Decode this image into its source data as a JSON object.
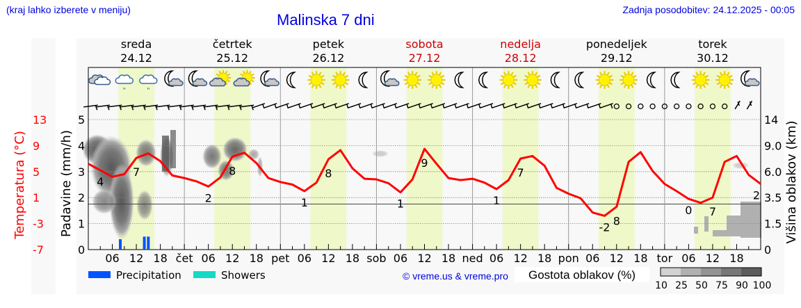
{
  "header": {
    "region_hint": "(kraj lahko izberete v meniju)",
    "title": "Malinska 7 dni",
    "last_update": "Zadnja posodobitev: 24.12.2025 - 00:05"
  },
  "colors": {
    "header_text": "#0000e0",
    "temperature": "#ff0000",
    "weekend_text": "#d00000",
    "daytime_band": "#eff8c8",
    "precipitation": "#0055ff",
    "showers": "#14d9c4",
    "cloud_scale": [
      "#d2d2d2",
      "#b0b0b0",
      "#939393",
      "#777777",
      "#5c5c5c"
    ]
  },
  "days": [
    {
      "name": "sreda",
      "date": "24.12",
      "weekend": false,
      "short": ""
    },
    {
      "name": "četrtek",
      "date": "25.12",
      "weekend": false,
      "short": "čet"
    },
    {
      "name": "petek",
      "date": "26.12",
      "weekend": false,
      "short": "pet"
    },
    {
      "name": "sobota",
      "date": "27.12",
      "weekend": true,
      "short": "sob"
    },
    {
      "name": "nedelja",
      "date": "28.12",
      "weekend": true,
      "short": "ned"
    },
    {
      "name": "ponedeljek",
      "date": "29.12",
      "weekend": false,
      "short": "pon"
    },
    {
      "name": "torek",
      "date": "30.12",
      "weekend": false,
      "short": "tor"
    }
  ],
  "weather_icons": [
    "cloudy",
    "cloudy-rain",
    "cloudy-rain",
    "moon-cloud",
    "moon-cloud",
    "sun-cloud",
    "sun-cloud",
    "moon-cloud",
    "moon",
    "sun",
    "sun",
    "moon",
    "moon-cloud",
    "sun",
    "sun",
    "moon",
    "moon",
    "sun",
    "sun",
    "moon",
    "moon",
    "sun",
    "sun",
    "moon",
    "moon",
    "sun",
    "sun",
    "moon-cloud"
  ],
  "wind_calm_from_index": 44,
  "axes": {
    "temperature_label": "Temperatura (°C)",
    "temperature_ticks": [
      "13",
      "9",
      "5",
      "1",
      "-3",
      "-7"
    ],
    "precip_label": "Padavine (mm/h)",
    "precip_ticks": [
      "5",
      "4",
      "3",
      "2",
      "1",
      "0"
    ],
    "cloud_height_label": "Višina oblakov (km)",
    "cloud_height_ticks": [
      "14",
      "9.0",
      "6.0",
      "3.5",
      "1.5",
      "0"
    ],
    "hour_ticks": [
      "06",
      "12",
      "18"
    ]
  },
  "legend": {
    "precipitation": "Precipitation",
    "showers": "Showers",
    "copyright": "© vreme.us & vreme.pro",
    "cloud_density_label": "Gostota oblakov (%)",
    "cloud_density_ticks": [
      "10",
      "25",
      "50",
      "75",
      "90",
      "100"
    ]
  },
  "chart_data": {
    "type": "line",
    "title": "Malinska 7 dni",
    "xlabel": "",
    "ylabel": "Temperatura (°C)",
    "ylim": [
      -7,
      13
    ],
    "y2label": "Padavine (mm/h)",
    "y2lim": [
      0,
      5
    ],
    "y3label": "Višina oblakov (km)",
    "grid": true,
    "x_hours": [
      0,
      3,
      6,
      9,
      12,
      15,
      18,
      21,
      24,
      27,
      30,
      33,
      36,
      39,
      42,
      45,
      48,
      51,
      54,
      57,
      60,
      63,
      66,
      69,
      72,
      75,
      78,
      81,
      84,
      87,
      90,
      93,
      96,
      99,
      102,
      105,
      108,
      111,
      114,
      117,
      120,
      123,
      126,
      129,
      132,
      135,
      138,
      141,
      144,
      147,
      150,
      153,
      156,
      159,
      162,
      165,
      168
    ],
    "series": [
      {
        "name": "Temperatura",
        "values": [
          6.2,
          5.2,
          4.2,
          4.6,
          7.1,
          7.8,
          6.6,
          4.4,
          4.0,
          3.5,
          2.7,
          4.1,
          7.3,
          7.9,
          6.3,
          4.0,
          3.4,
          3.0,
          2.0,
          3.3,
          6.9,
          8.3,
          5.5,
          3.9,
          3.8,
          3.2,
          1.8,
          3.8,
          8.5,
          6.2,
          4.0,
          3.7,
          3.9,
          3.3,
          2.3,
          3.7,
          7.0,
          7.4,
          5.9,
          2.5,
          1.6,
          0.9,
          -1.3,
          -1.8,
          -0.4,
          6.5,
          8.0,
          5.1,
          3.1,
          2.0,
          0.8,
          0.2,
          1.0,
          6.5,
          7.4,
          4.5,
          3.1
        ],
        "labels": [
          {
            "hour": 3,
            "text": "4"
          },
          {
            "hour": 12,
            "text": "7"
          },
          {
            "hour": 30,
            "text": "2"
          },
          {
            "hour": 36,
            "text": "8"
          },
          {
            "hour": 54,
            "text": "1"
          },
          {
            "hour": 60,
            "text": "8"
          },
          {
            "hour": 78,
            "text": "1"
          },
          {
            "hour": 84,
            "text": "9"
          },
          {
            "hour": 102,
            "text": "1"
          },
          {
            "hour": 108,
            "text": "7"
          },
          {
            "hour": 129,
            "text": "-2"
          },
          {
            "hour": 132,
            "text": "8"
          },
          {
            "hour": 150,
            "text": "0"
          },
          {
            "hour": 156,
            "text": "7"
          },
          {
            "hour": 168,
            "text": "2"
          }
        ]
      },
      {
        "name": "Precipitation",
        "bars": [
          {
            "hour": 8,
            "value": 0.4
          },
          {
            "hour": 14,
            "value": 0.5
          },
          {
            "hour": 15,
            "value": 0.5
          }
        ]
      }
    ],
    "daytime_bands_hours": [
      [
        7.5,
        16.5
      ],
      [
        31.5,
        40.5
      ],
      [
        55.5,
        64.5
      ],
      [
        79.5,
        88.5
      ],
      [
        103.5,
        112.5
      ],
      [
        127.5,
        136.5
      ],
      [
        151.5,
        160.5
      ]
    ]
  }
}
